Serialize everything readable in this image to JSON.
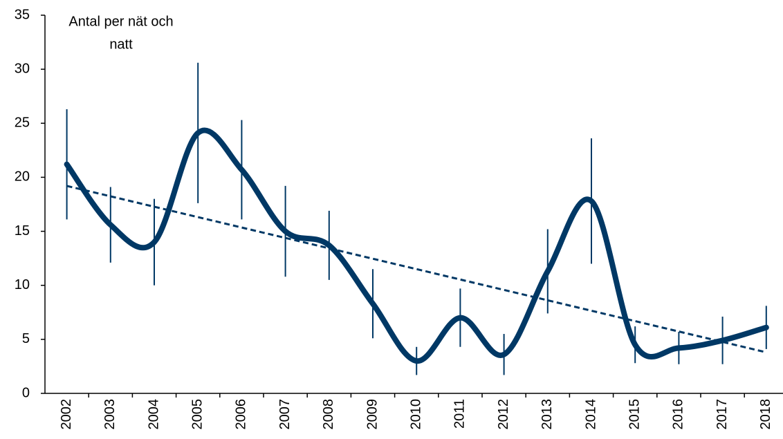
{
  "chart_data": {
    "type": "line",
    "ylabel": [
      "Antal per nät och",
      "natt"
    ],
    "categories": [
      "2002",
      "2003",
      "2004",
      "2005",
      "2006",
      "2007",
      "2008",
      "2009",
      "2010",
      "2011",
      "2012",
      "2013",
      "2014",
      "2015",
      "2016",
      "2017",
      "2018"
    ],
    "series": [
      {
        "color": "#003865",
        "values": [
          21.2,
          15.6,
          14.0,
          24.1,
          20.7,
          15.0,
          13.7,
          8.3,
          3.0,
          7.0,
          3.6,
          11.3,
          17.8,
          4.5,
          4.2,
          4.9,
          6.1
        ],
        "errors": [
          5.1,
          3.5,
          4.0,
          6.5,
          4.6,
          4.2,
          3.2,
          3.2,
          1.3,
          2.7,
          1.9,
          3.9,
          5.8,
          1.7,
          1.5,
          2.2,
          2.0
        ]
      }
    ],
    "trend": {
      "x": [
        "2002",
        "2018"
      ],
      "values": [
        19.2,
        3.8
      ],
      "color": "#003865",
      "dashed": true
    },
    "ylim": [
      0,
      35
    ],
    "yticks": [
      0,
      5,
      10,
      15,
      20,
      25,
      30,
      35
    ]
  }
}
